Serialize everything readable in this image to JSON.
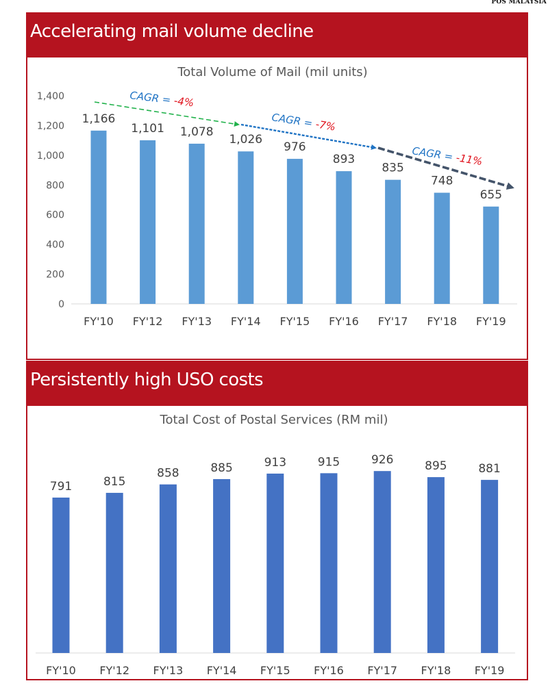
{
  "source_label": "POS MALAYSIA",
  "sections": [
    {
      "heading": "Accelerating mail volume decline"
    },
    {
      "heading": "Persistently high USO costs"
    }
  ],
  "chart_data": [
    {
      "type": "bar",
      "title": "Total Volume of Mail (mil units)",
      "categories": [
        "FY'10",
        "FY'12",
        "FY'13",
        "FY'14",
        "FY'15",
        "FY'16",
        "FY'17",
        "FY'18",
        "FY'19"
      ],
      "values": [
        1166,
        1101,
        1078,
        1026,
        976,
        893,
        835,
        748,
        655
      ],
      "data_labels": [
        "1,166",
        "1,101",
        "1,078",
        "1,026",
        "976",
        "893",
        "835",
        "748",
        "655"
      ],
      "ylim": [
        0,
        1400
      ],
      "yticks": [
        "0",
        "200",
        "400",
        "600",
        "800",
        "1,000",
        "1,200",
        "1,400"
      ],
      "bar_color": "#5b9bd5",
      "grid": false,
      "annotations": [
        {
          "prefix": "CAGR = ",
          "value": "-4%",
          "from": "FY'10",
          "to": "FY'14",
          "color": "#22b24c"
        },
        {
          "prefix": "CAGR = ",
          "value": "-7%",
          "from": "FY'14",
          "to": "FY'17",
          "color": "#1f73c4"
        },
        {
          "prefix": "CAGR = ",
          "value": "-11%",
          "from": "FY'17",
          "to": "FY'19",
          "color": "#44546a"
        }
      ],
      "annotation_prefix_color": "#1f73c4",
      "annotation_value_color": "#e0141e"
    },
    {
      "type": "bar",
      "title": "Total Cost of Postal Services (RM mil)",
      "categories": [
        "FY'10",
        "FY'12",
        "FY'13",
        "FY'14",
        "FY'15",
        "FY'16",
        "FY'17",
        "FY'18",
        "FY'19"
      ],
      "values": [
        791,
        815,
        858,
        885,
        913,
        915,
        926,
        895,
        881
      ],
      "data_labels": [
        "791",
        "815",
        "858",
        "885",
        "913",
        "915",
        "926",
        "895",
        "881"
      ],
      "bar_color": "#4472c4",
      "grid": false
    }
  ]
}
